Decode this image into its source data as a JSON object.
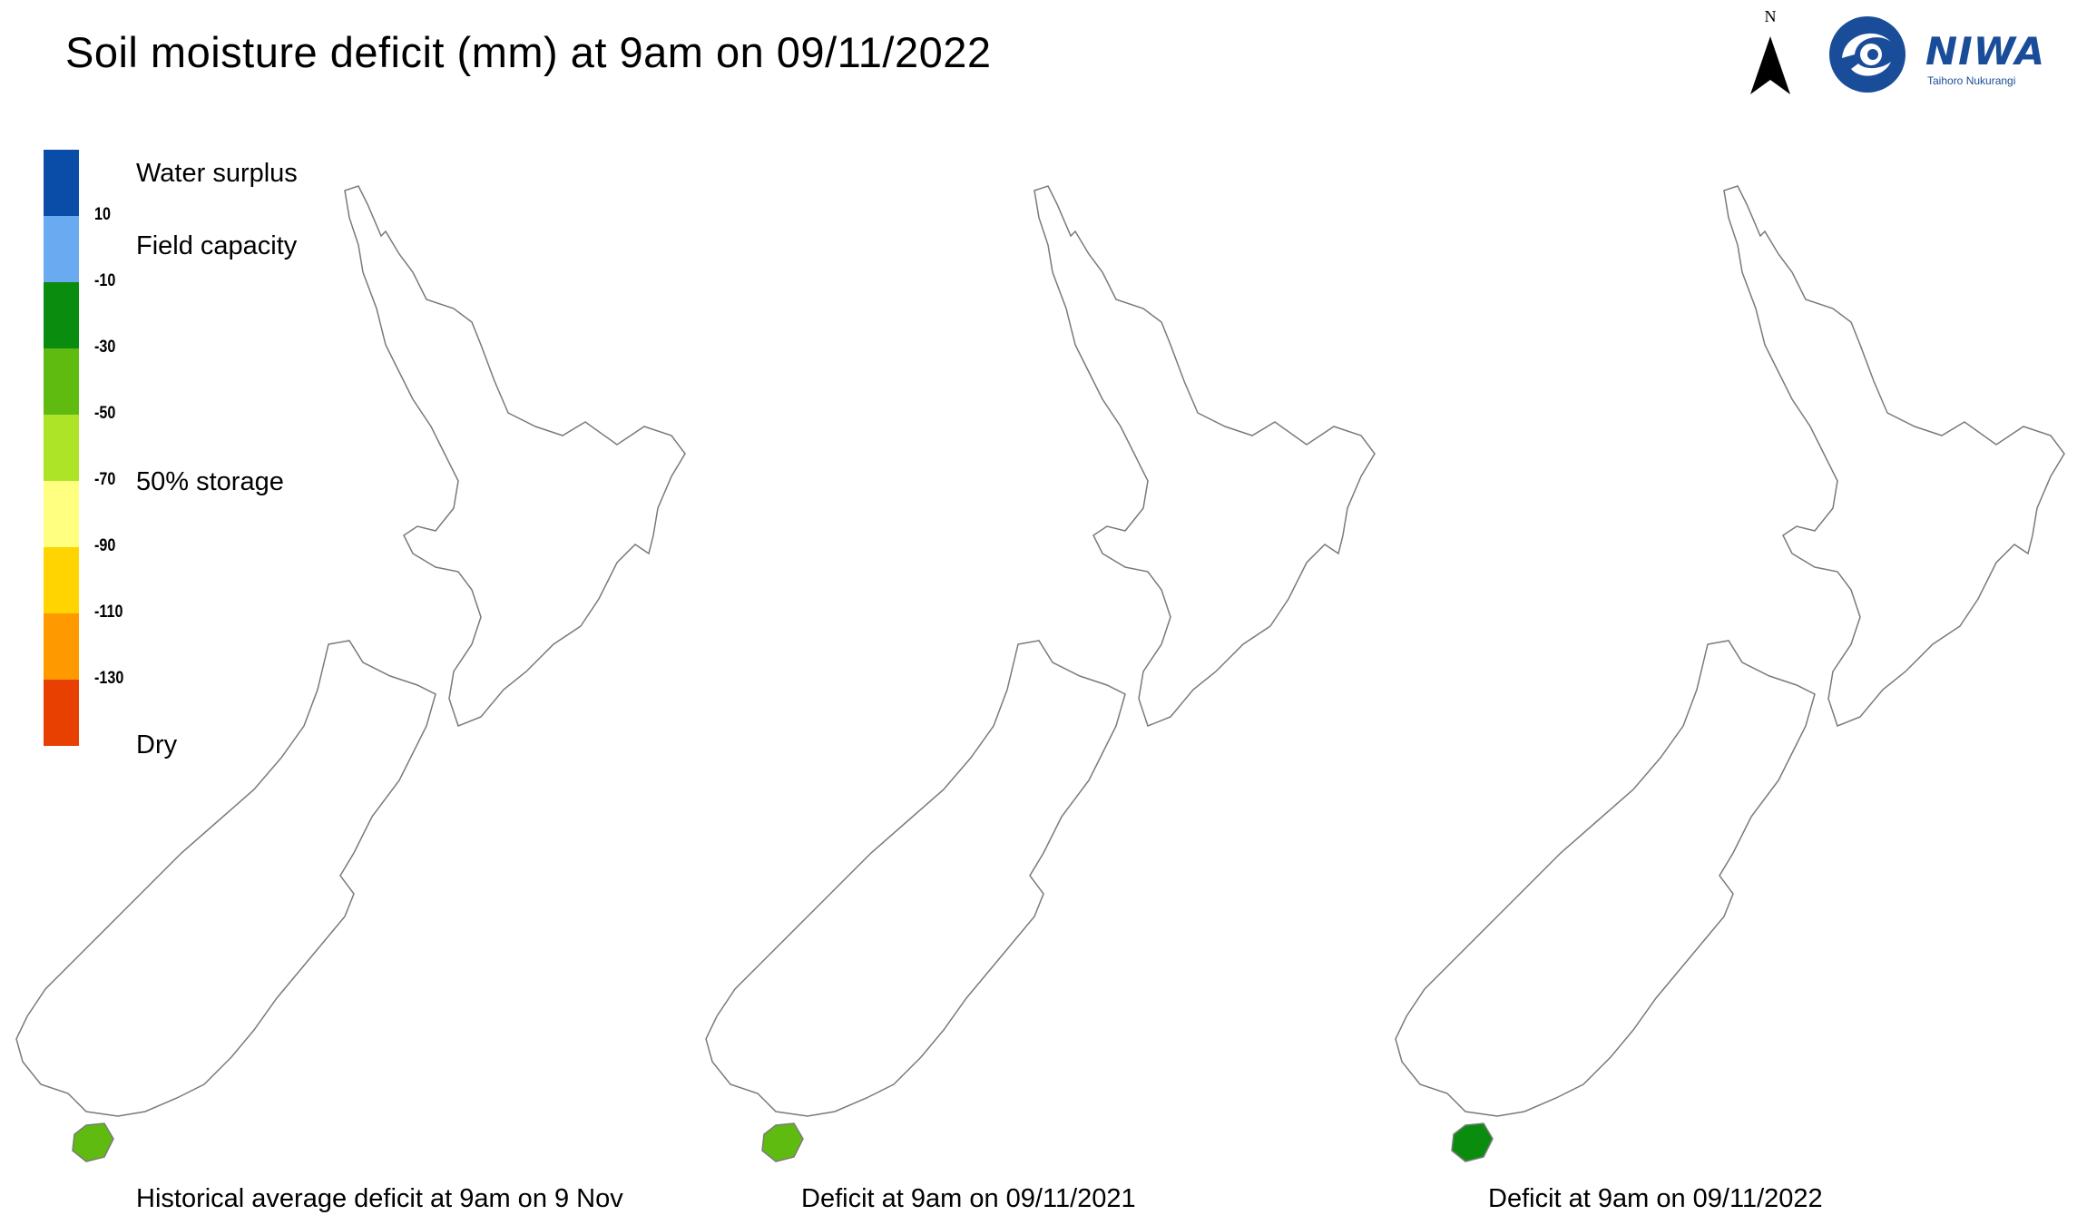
{
  "title": "Soil moisture deficit (mm) at  9am on 09/11/2022",
  "north_label": "N",
  "logo": {
    "name": "NIWA",
    "subtitle": "Taihoro Nukurangi",
    "color": "#1a4d99"
  },
  "legend": {
    "colors": [
      "#0a4da8",
      "#6aaaf0",
      "#0a8c0f",
      "#5fbb10",
      "#aee428",
      "#ffff80",
      "#ffd400",
      "#ff9900",
      "#e84000"
    ],
    "ticks": [
      "10",
      "-10",
      "-30",
      "-50",
      "-70",
      "-90",
      "-110",
      "-130"
    ],
    "labels": {
      "surplus": "Water surplus",
      "field_capacity": "Field capacity",
      "storage": "50% storage",
      "dry": "Dry"
    }
  },
  "maps": [
    {
      "caption": "Historical average deficit at  9am on 9 Nov"
    },
    {
      "caption": "Deficit at  9am on 09/11/2021"
    },
    {
      "caption": "Deficit at  9am on 09/11/2022"
    }
  ]
}
